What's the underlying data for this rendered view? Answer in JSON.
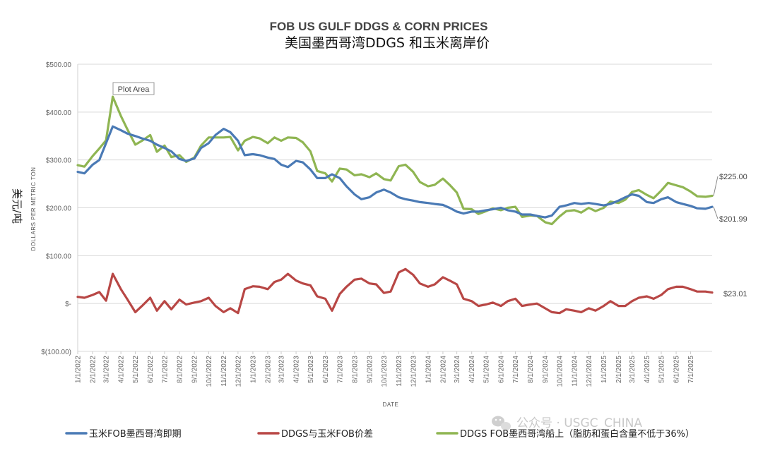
{
  "chart_data": {
    "type": "line",
    "title": "FOB US GULF DDGS & CORN PRICES",
    "subtitle": "美国墨西哥湾DDGS 和玉米离岸价",
    "xlabel": "DATE",
    "ylabel": "DOLLARS PER METRIC TON",
    "ylabel_cn": "美元/吨",
    "ylim": [
      -100,
      500
    ],
    "y_ticks": [
      {
        "value": 500,
        "label": "$500.00"
      },
      {
        "value": 400,
        "label": "$400.00"
      },
      {
        "value": 300,
        "label": "$300.00"
      },
      {
        "value": 200,
        "label": "$200.00"
      },
      {
        "value": 100,
        "label": "$100.00"
      },
      {
        "value": 0,
        "label": "$-"
      },
      {
        "value": -100,
        "label": "$(100.00)"
      }
    ],
    "x_tick_labels": [
      "1/1/2022",
      "2/1/2022",
      "3/1/2022",
      "4/1/2022",
      "5/1/2022",
      "6/1/2022",
      "7/1/2022",
      "8/1/2022",
      "9/1/2022",
      "10/1/2022",
      "11/1/2022",
      "12/1/2022",
      "1/1/2023",
      "2/1/2023",
      "3/1/2023",
      "4/1/2023",
      "5/1/2023",
      "6/1/2023",
      "7/1/2023",
      "8/1/2023",
      "9/1/2023",
      "10/1/2023",
      "11/1/2023",
      "12/1/2023",
      "1/1/2024",
      "2/1/2024",
      "3/1/2024",
      "4/1/2024",
      "5/1/2024",
      "6/1/2024",
      "7/1/2024",
      "8/1/2024",
      "9/1/2024",
      "10/1/2024",
      "11/1/2024",
      "12/1/2024",
      "1/1/2025",
      "2/1/2025",
      "3/1/2025",
      "4/1/2025",
      "5/1/2025",
      "6/1/2025",
      "7/1/2025"
    ],
    "x_range": [
      "2022-01-01",
      "2025-08-15"
    ],
    "gridlines": "horizontal",
    "legend_position": "bottom",
    "series": [
      {
        "name": "玉米FOB墨西哥湾即期",
        "color": "#4a7ab5",
        "end_label": "$201.99",
        "x": [
          "2022-01-01",
          "2022-01-15",
          "2022-02-01",
          "2022-02-15",
          "2022-03-01",
          "2022-03-15",
          "2022-04-01",
          "2022-04-15",
          "2022-05-01",
          "2022-05-15",
          "2022-06-01",
          "2022-06-15",
          "2022-07-01",
          "2022-07-15",
          "2022-08-01",
          "2022-08-15",
          "2022-09-01",
          "2022-09-15",
          "2022-10-01",
          "2022-10-15",
          "2022-11-01",
          "2022-11-15",
          "2022-12-01",
          "2022-12-15",
          "2023-01-01",
          "2023-01-15",
          "2023-02-01",
          "2023-02-15",
          "2023-03-01",
          "2023-03-15",
          "2023-04-01",
          "2023-04-15",
          "2023-05-01",
          "2023-05-15",
          "2023-06-01",
          "2023-06-15",
          "2023-07-01",
          "2023-07-15",
          "2023-08-01",
          "2023-08-15",
          "2023-09-01",
          "2023-09-15",
          "2023-10-01",
          "2023-10-15",
          "2023-11-01",
          "2023-11-15",
          "2023-12-01",
          "2023-12-15",
          "2024-01-01",
          "2024-01-15",
          "2024-02-01",
          "2024-02-15",
          "2024-03-01",
          "2024-03-15",
          "2024-04-01",
          "2024-04-15",
          "2024-05-01",
          "2024-05-15",
          "2024-06-01",
          "2024-06-15",
          "2024-07-01",
          "2024-07-15",
          "2024-08-01",
          "2024-08-15",
          "2024-09-01",
          "2024-09-15",
          "2024-10-01",
          "2024-10-15",
          "2024-11-01",
          "2024-11-15",
          "2024-12-01",
          "2024-12-15",
          "2025-01-01",
          "2025-01-15",
          "2025-02-01",
          "2025-02-15",
          "2025-03-01",
          "2025-03-15",
          "2025-04-01",
          "2025-04-15",
          "2025-05-01",
          "2025-05-15",
          "2025-06-01",
          "2025-06-15",
          "2025-07-01",
          "2025-07-15",
          "2025-08-01",
          "2025-08-15"
        ],
        "y": [
          275,
          272,
          290,
          300,
          335,
          370,
          362,
          355,
          350,
          345,
          340,
          332,
          325,
          318,
          302,
          298,
          303,
          325,
          335,
          352,
          365,
          358,
          340,
          310,
          312,
          310,
          305,
          302,
          290,
          285,
          298,
          295,
          280,
          262,
          262,
          270,
          262,
          245,
          228,
          218,
          222,
          232,
          238,
          232,
          222,
          218,
          215,
          212,
          210,
          208,
          206,
          200,
          192,
          188,
          192,
          192,
          195,
          197,
          200,
          195,
          192,
          186,
          186,
          183,
          180,
          184,
          202,
          205,
          210,
          208,
          210,
          208,
          205,
          208,
          215,
          222,
          228,
          225,
          212,
          210,
          218,
          222,
          212,
          208,
          204,
          199,
          198,
          202
        ]
      },
      {
        "name": "DDGS与玉米FOB价差",
        "color": "#b84745",
        "end_label": "$23.01",
        "x": [
          "2022-01-01",
          "2022-01-15",
          "2022-02-01",
          "2022-02-15",
          "2022-03-01",
          "2022-03-15",
          "2022-04-01",
          "2022-04-15",
          "2022-05-01",
          "2022-05-15",
          "2022-06-01",
          "2022-06-15",
          "2022-07-01",
          "2022-07-15",
          "2022-08-01",
          "2022-08-15",
          "2022-09-01",
          "2022-09-15",
          "2022-10-01",
          "2022-10-15",
          "2022-11-01",
          "2022-11-15",
          "2022-12-01",
          "2022-12-15",
          "2023-01-01",
          "2023-01-15",
          "2023-02-01",
          "2023-02-15",
          "2023-03-01",
          "2023-03-15",
          "2023-04-01",
          "2023-04-15",
          "2023-05-01",
          "2023-05-15",
          "2023-06-01",
          "2023-06-15",
          "2023-07-01",
          "2023-07-15",
          "2023-08-01",
          "2023-08-15",
          "2023-09-01",
          "2023-09-15",
          "2023-10-01",
          "2023-10-15",
          "2023-11-01",
          "2023-11-15",
          "2023-12-01",
          "2023-12-15",
          "2024-01-01",
          "2024-01-15",
          "2024-02-01",
          "2024-02-15",
          "2024-03-01",
          "2024-03-15",
          "2024-04-01",
          "2024-04-15",
          "2024-05-01",
          "2024-05-15",
          "2024-06-01",
          "2024-06-15",
          "2024-07-01",
          "2024-07-15",
          "2024-08-01",
          "2024-08-15",
          "2024-09-01",
          "2024-09-15",
          "2024-10-01",
          "2024-10-15",
          "2024-11-01",
          "2024-11-15",
          "2024-12-01",
          "2024-12-15",
          "2025-01-01",
          "2025-01-15",
          "2025-02-01",
          "2025-02-15",
          "2025-03-01",
          "2025-03-15",
          "2025-04-01",
          "2025-04-15",
          "2025-05-01",
          "2025-05-15",
          "2025-06-01",
          "2025-06-15",
          "2025-07-01",
          "2025-07-15",
          "2025-08-01",
          "2025-08-15"
        ],
        "y": [
          14,
          12,
          18,
          24,
          6,
          62,
          30,
          8,
          -18,
          -5,
          12,
          -15,
          5,
          -12,
          8,
          -2,
          2,
          5,
          12,
          -5,
          -18,
          -10,
          -20,
          30,
          36,
          35,
          30,
          45,
          50,
          62,
          48,
          42,
          38,
          15,
          10,
          -15,
          20,
          35,
          50,
          52,
          42,
          40,
          22,
          25,
          65,
          72,
          60,
          42,
          35,
          40,
          55,
          48,
          40,
          10,
          5,
          -5,
          -2,
          2,
          -5,
          5,
          10,
          -5,
          -2,
          0,
          -10,
          -18,
          -20,
          -12,
          -15,
          -18,
          -10,
          -15,
          -5,
          5,
          -5,
          -5,
          5,
          12,
          15,
          10,
          18,
          30,
          35,
          35,
          30,
          25,
          25,
          23
        ]
      },
      {
        "name": "DDGS FOB墨西哥湾船上（脂肪和蛋白含量不低于36%）",
        "color": "#8fb552",
        "end_label": "$225.00",
        "x": [
          "2022-01-01",
          "2022-01-15",
          "2022-02-01",
          "2022-02-15",
          "2022-03-01",
          "2022-03-15",
          "2022-04-01",
          "2022-04-15",
          "2022-05-01",
          "2022-05-15",
          "2022-06-01",
          "2022-06-15",
          "2022-07-01",
          "2022-07-15",
          "2022-08-01",
          "2022-08-15",
          "2022-09-01",
          "2022-09-15",
          "2022-10-01",
          "2022-10-15",
          "2022-11-01",
          "2022-11-15",
          "2022-12-01",
          "2022-12-15",
          "2023-01-01",
          "2023-01-15",
          "2023-02-01",
          "2023-02-15",
          "2023-03-01",
          "2023-03-15",
          "2023-04-01",
          "2023-04-15",
          "2023-05-01",
          "2023-05-15",
          "2023-06-01",
          "2023-06-15",
          "2023-07-01",
          "2023-07-15",
          "2023-08-01",
          "2023-08-15",
          "2023-09-01",
          "2023-09-15",
          "2023-10-01",
          "2023-10-15",
          "2023-11-01",
          "2023-11-15",
          "2023-12-01",
          "2023-12-15",
          "2024-01-01",
          "2024-01-15",
          "2024-02-01",
          "2024-02-15",
          "2024-03-01",
          "2024-03-15",
          "2024-04-01",
          "2024-04-15",
          "2024-05-01",
          "2024-05-15",
          "2024-06-01",
          "2024-06-15",
          "2024-07-01",
          "2024-07-15",
          "2024-08-01",
          "2024-08-15",
          "2024-09-01",
          "2024-09-15",
          "2024-10-01",
          "2024-10-15",
          "2024-11-01",
          "2024-11-15",
          "2024-12-01",
          "2024-12-15",
          "2025-01-01",
          "2025-01-15",
          "2025-02-01",
          "2025-02-15",
          "2025-03-01",
          "2025-03-15",
          "2025-04-01",
          "2025-04-15",
          "2025-05-01",
          "2025-05-15",
          "2025-06-01",
          "2025-06-15",
          "2025-07-01",
          "2025-07-15",
          "2025-08-01",
          "2025-08-15"
        ],
        "y": [
          289,
          286,
          308,
          324,
          341,
          432,
          392,
          363,
          332,
          340,
          352,
          317,
          330,
          306,
          310,
          296,
          305,
          330,
          347,
          347,
          347,
          348,
          320,
          340,
          348,
          345,
          335,
          347,
          340,
          347,
          346,
          337,
          318,
          277,
          272,
          255,
          282,
          280,
          268,
          270,
          264,
          272,
          260,
          257,
          287,
          290,
          275,
          254,
          245,
          248,
          261,
          248,
          232,
          198,
          197,
          187,
          193,
          199,
          195,
          200,
          202,
          181,
          184,
          183,
          170,
          166,
          182,
          193,
          195,
          190,
          200,
          193,
          200,
          213,
          210,
          217,
          233,
          237,
          227,
          220,
          236,
          252,
          247,
          243,
          234,
          224,
          223,
          225
        ]
      }
    ]
  },
  "tooltip": {
    "text": "Plot Area"
  },
  "watermark": {
    "text": "公众号 · USGC_CHINA"
  }
}
